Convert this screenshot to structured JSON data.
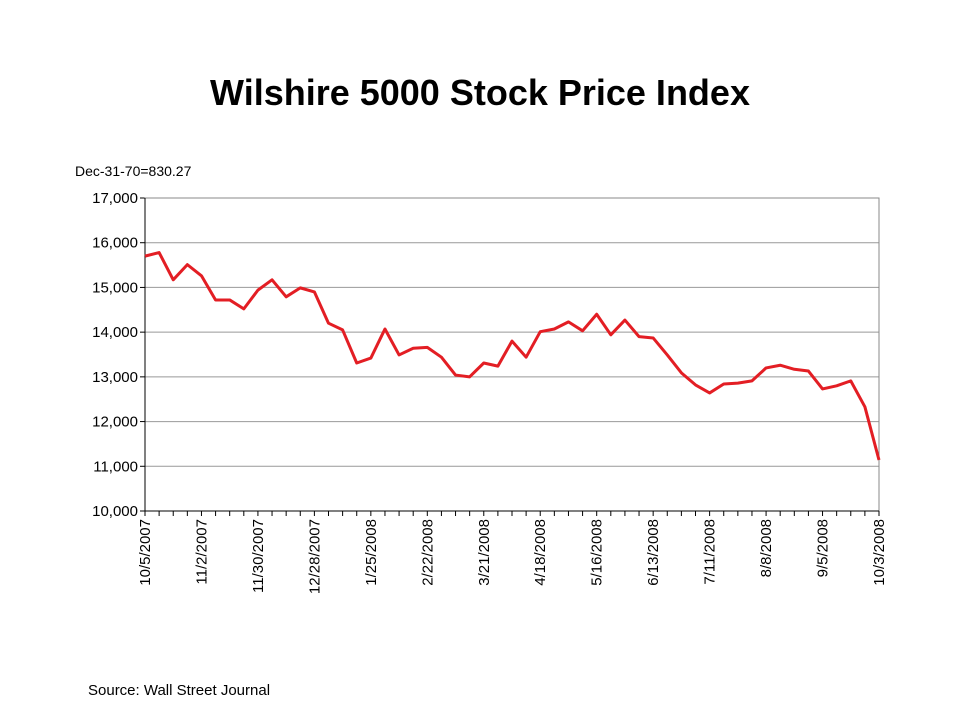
{
  "chart_data": {
    "type": "line",
    "title": "Wilshire 5000 Stock Price Index",
    "subtitle": "Dec-31-70=830.27",
    "source": "Source:  Wall Street Journal",
    "categories": [
      "10/5/2007",
      null,
      null,
      null,
      "11/2/2007",
      null,
      null,
      null,
      "11/30/2007",
      null,
      null,
      null,
      "12/28/2007",
      null,
      null,
      null,
      "1/25/2008",
      null,
      null,
      null,
      "2/22/2008",
      null,
      null,
      null,
      "3/21/2008",
      null,
      null,
      null,
      "4/18/2008",
      null,
      null,
      null,
      "5/16/2008",
      null,
      null,
      null,
      "6/13/2008",
      null,
      null,
      null,
      "7/11/2008",
      null,
      null,
      null,
      "8/8/2008",
      null,
      null,
      null,
      "9/5/2008",
      null,
      null,
      null,
      "10/3/2008"
    ],
    "series": [
      {
        "name": "Wilshire 5000",
        "color": "#e31e24",
        "values": [
          15700,
          15780,
          15170,
          15510,
          15260,
          14720,
          14720,
          14520,
          14940,
          15170,
          14790,
          14990,
          14900,
          14200,
          14050,
          13310,
          13420,
          14070,
          13490,
          13640,
          13660,
          13440,
          13040,
          13000,
          13310,
          13240,
          13800,
          13440,
          14010,
          14070,
          14230,
          14030,
          14400,
          13940,
          14270,
          13900,
          13870,
          13490,
          13090,
          12820,
          12640,
          12840,
          12860,
          12910,
          13200,
          13260,
          13170,
          13130,
          12730,
          12800,
          12910,
          12330,
          11140
        ]
      }
    ],
    "ylim": [
      10000,
      17000
    ],
    "yticks": [
      {
        "value": 10000,
        "label": "10,000"
      },
      {
        "value": 11000,
        "label": "11,000"
      },
      {
        "value": 12000,
        "label": "12,000"
      },
      {
        "value": 13000,
        "label": "13,000"
      },
      {
        "value": 14000,
        "label": "14,000"
      },
      {
        "value": 15000,
        "label": "15,000"
      },
      {
        "value": 16000,
        "label": "16,000"
      },
      {
        "value": 17000,
        "label": "17,000"
      }
    ],
    "grid": true
  }
}
